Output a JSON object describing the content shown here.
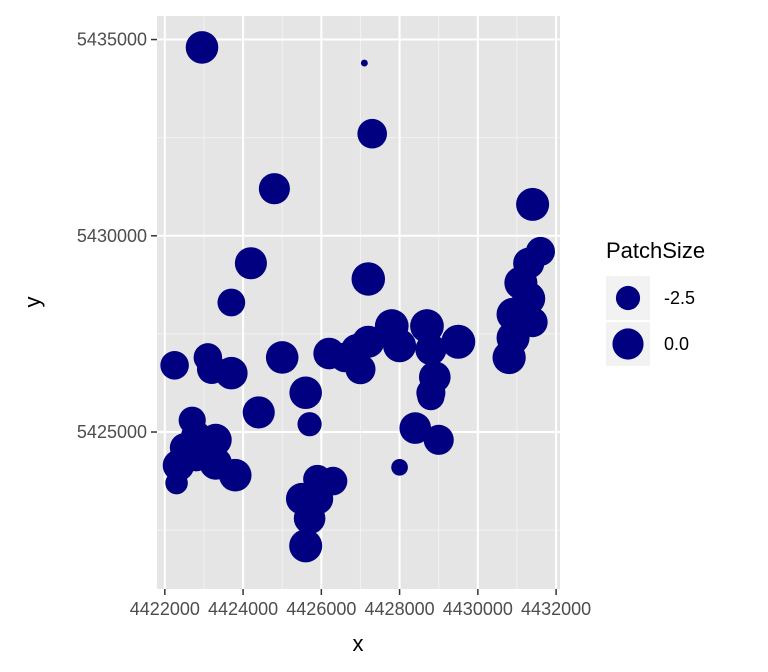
{
  "chart_data": {
    "type": "scatter",
    "title": "",
    "xlabel": "x",
    "ylabel": "y",
    "xlim": [
      4421800,
      4432100
    ],
    "ylim": [
      5421000,
      5435600
    ],
    "x_ticks": [
      4422000,
      4424000,
      4426000,
      4428000,
      4430000,
      4432000
    ],
    "x_tick_labels": [
      "4422000",
      "4424000",
      "4426000",
      "4428000",
      "4430000",
      "4432000"
    ],
    "y_ticks": [
      5425000,
      5430000,
      5435000
    ],
    "y_tick_labels": [
      "5425000",
      "5430000",
      "5435000"
    ],
    "grid": true,
    "point_color": "#000080",
    "panel_color": "#e5e5e5",
    "size_variable": "PatchSize",
    "legend": {
      "title": "PatchSize",
      "placement": "right",
      "entries": [
        {
          "label": "-2.5",
          "value": -2.5
        },
        {
          "label": "0.0",
          "value": 0.0
        }
      ]
    },
    "size_range": [
      -6,
      1.5
    ],
    "points": [
      {
        "x": 4422950,
        "y": 5434800,
        "size": 0.6
      },
      {
        "x": 4427100,
        "y": 5434400,
        "size": -6.0
      },
      {
        "x": 4427300,
        "y": 5432600,
        "size": -0.6
      },
      {
        "x": 4424800,
        "y": 5431200,
        "size": 0.0
      },
      {
        "x": 4431400,
        "y": 5430800,
        "size": 0.8
      },
      {
        "x": 4431600,
        "y": 5429600,
        "size": -0.8
      },
      {
        "x": 4431300,
        "y": 5429300,
        "size": 0.0
      },
      {
        "x": 4431100,
        "y": 5428800,
        "size": 0.8
      },
      {
        "x": 4431300,
        "y": 5428400,
        "size": 0.8
      },
      {
        "x": 4430900,
        "y": 5428000,
        "size": 0.8
      },
      {
        "x": 4431400,
        "y": 5427800,
        "size": -0.4
      },
      {
        "x": 4430900,
        "y": 5427400,
        "size": 0.8
      },
      {
        "x": 4430800,
        "y": 5426900,
        "size": 0.9
      },
      {
        "x": 4424200,
        "y": 5429300,
        "size": 0.4
      },
      {
        "x": 4427200,
        "y": 5428900,
        "size": 1.0
      },
      {
        "x": 4423700,
        "y": 5428300,
        "size": -1.3
      },
      {
        "x": 4427800,
        "y": 5427700,
        "size": 1.1
      },
      {
        "x": 4428700,
        "y": 5427700,
        "size": 1.1
      },
      {
        "x": 4429500,
        "y": 5427300,
        "size": 1.2
      },
      {
        "x": 4428000,
        "y": 5427200,
        "size": 0.8
      },
      {
        "x": 4428800,
        "y": 5427100,
        "size": 0.0
      },
      {
        "x": 4427200,
        "y": 5427300,
        "size": 0.4
      },
      {
        "x": 4426900,
        "y": 5427100,
        "size": 0.0
      },
      {
        "x": 4426200,
        "y": 5427000,
        "size": 0.2
      },
      {
        "x": 4426600,
        "y": 5426900,
        "size": -0.6
      },
      {
        "x": 4425000,
        "y": 5426900,
        "size": 0.6
      },
      {
        "x": 4427000,
        "y": 5426600,
        "size": -0.4
      },
      {
        "x": 4428900,
        "y": 5426400,
        "size": 0.2
      },
      {
        "x": 4428800,
        "y": 5426000,
        "size": -0.8
      },
      {
        "x": 4428800,
        "y": 5425900,
        "size": -1.5
      },
      {
        "x": 4422250,
        "y": 5426700,
        "size": -1.0
      },
      {
        "x": 4423100,
        "y": 5426900,
        "size": -1.0
      },
      {
        "x": 4423200,
        "y": 5426600,
        "size": -0.6
      },
      {
        "x": 4423700,
        "y": 5426500,
        "size": 0.6
      },
      {
        "x": 4425600,
        "y": 5426000,
        "size": 0.6
      },
      {
        "x": 4424400,
        "y": 5425500,
        "size": 0.4
      },
      {
        "x": 4425700,
        "y": 5425200,
        "size": -2.5
      },
      {
        "x": 4422700,
        "y": 5425300,
        "size": -1.5
      },
      {
        "x": 4422800,
        "y": 5424900,
        "size": -0.4
      },
      {
        "x": 4422500,
        "y": 5424600,
        "size": -0.8
      },
      {
        "x": 4423300,
        "y": 5424800,
        "size": 0.4
      },
      {
        "x": 4422800,
        "y": 5424400,
        "size": 0.2
      },
      {
        "x": 4422350,
        "y": 5424150,
        "size": 0.2
      },
      {
        "x": 4423300,
        "y": 5424200,
        "size": 0.6
      },
      {
        "x": 4423800,
        "y": 5423900,
        "size": 0.6
      },
      {
        "x": 4422300,
        "y": 5423700,
        "size": -3.0
      },
      {
        "x": 4428400,
        "y": 5425100,
        "size": 0.2
      },
      {
        "x": 4429000,
        "y": 5424800,
        "size": -0.4
      },
      {
        "x": 4428000,
        "y": 5424100,
        "size": -4.5
      },
      {
        "x": 4425900,
        "y": 5423800,
        "size": -1.0
      },
      {
        "x": 4426300,
        "y": 5423750,
        "size": -1.0
      },
      {
        "x": 4425500,
        "y": 5423300,
        "size": 0.2
      },
      {
        "x": 4425900,
        "y": 5423300,
        "size": 0.2
      },
      {
        "x": 4425700,
        "y": 5422800,
        "size": 0.2
      },
      {
        "x": 4425600,
        "y": 5422100,
        "size": 0.8
      }
    ]
  }
}
